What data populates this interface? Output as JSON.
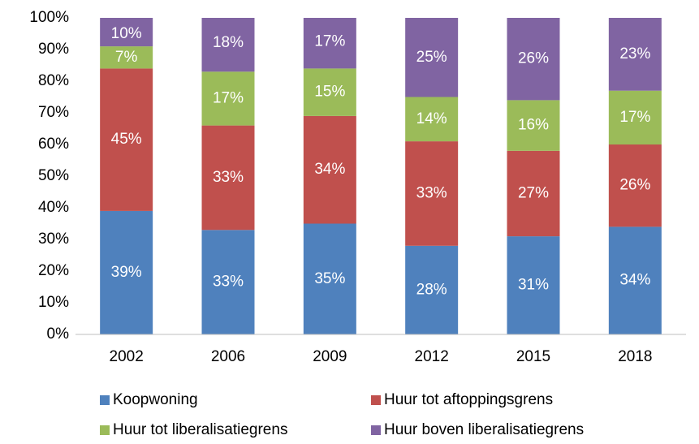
{
  "chart_data": {
    "type": "stacked_bar",
    "categories": [
      "2002",
      "2006",
      "2009",
      "2012",
      "2015",
      "2018"
    ],
    "series": [
      {
        "name": "Koopwoning",
        "color": "#4f81bd",
        "values": [
          39,
          33,
          35,
          28,
          31,
          34
        ],
        "value_labels": [
          "39%",
          "33%",
          "35%",
          "28%",
          "31%",
          "34%"
        ]
      },
      {
        "name": "Huur tot aftoppingsgrens",
        "color": "#c0504d",
        "values": [
          45,
          33,
          34,
          33,
          27,
          26
        ],
        "value_labels": [
          "45%",
          "33%",
          "34%",
          "33%",
          "27%",
          "26%"
        ]
      },
      {
        "name": "Huur tot liberalisatiegrens",
        "color": "#9bbb59",
        "values": [
          7,
          17,
          15,
          14,
          16,
          17
        ],
        "value_labels": [
          "7%",
          "17%",
          "15%",
          "14%",
          "16%",
          "17%"
        ]
      },
      {
        "name": "Huur boven liberalisatiegrens",
        "color": "#8064a2",
        "values": [
          10,
          18,
          17,
          25,
          26,
          23
        ],
        "value_labels": [
          "10%",
          "18%",
          "17%",
          "25%",
          "26%",
          "23%"
        ]
      }
    ],
    "ylim": [
      0,
      100
    ],
    "yticks": [
      {
        "value": 0,
        "label": "0%"
      },
      {
        "value": 10,
        "label": "10%"
      },
      {
        "value": 20,
        "label": "20%"
      },
      {
        "value": 30,
        "label": "30%"
      },
      {
        "value": 40,
        "label": "40%"
      },
      {
        "value": 50,
        "label": "50%"
      },
      {
        "value": 60,
        "label": "60%"
      },
      {
        "value": 70,
        "label": "70%"
      },
      {
        "value": 80,
        "label": "80%"
      },
      {
        "value": 90,
        "label": "90%"
      },
      {
        "value": 100,
        "label": "100%"
      }
    ],
    "grid": false
  }
}
